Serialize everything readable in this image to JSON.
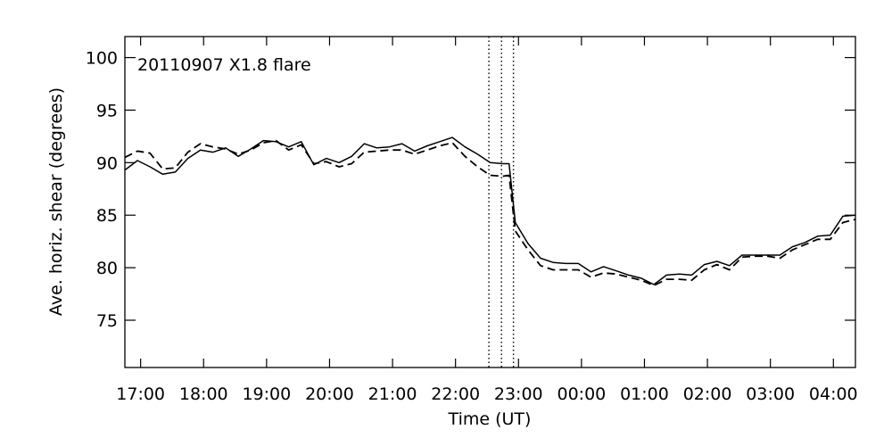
{
  "chart_data": {
    "type": "line",
    "title": "20110907 X1.8 flare",
    "xlabel": "Time (UT)",
    "ylabel": "Ave. horiz. shear (degrees)",
    "x_unit": "hours (UT, continuous past midnight)",
    "xlim": [
      16.75,
      28.35
    ],
    "ylim": [
      70.5,
      102
    ],
    "xticks": [
      {
        "value": 17,
        "label": "17:00"
      },
      {
        "value": 18,
        "label": "18:00"
      },
      {
        "value": 19,
        "label": "19:00"
      },
      {
        "value": 20,
        "label": "20:00"
      },
      {
        "value": 21,
        "label": "21:00"
      },
      {
        "value": 22,
        "label": "22:00"
      },
      {
        "value": 23,
        "label": "23:00"
      },
      {
        "value": 24,
        "label": "00:00"
      },
      {
        "value": 25,
        "label": "01:00"
      },
      {
        "value": 26,
        "label": "02:00"
      },
      {
        "value": 27,
        "label": "03:00"
      },
      {
        "value": 28,
        "label": "04:00"
      }
    ],
    "yticks": [
      75,
      80,
      85,
      90,
      95,
      100
    ],
    "vlines": [
      22.53,
      22.73,
      22.92
    ],
    "series": [
      {
        "style": "solid",
        "x": [
          16.75,
          16.95,
          17.15,
          17.35,
          17.55,
          17.75,
          17.95,
          18.15,
          18.35,
          18.55,
          18.75,
          18.95,
          19.15,
          19.35,
          19.55,
          19.75,
          19.95,
          20.15,
          20.35,
          20.55,
          20.75,
          20.95,
          21.15,
          21.35,
          21.55,
          21.75,
          21.95,
          22.15,
          22.35,
          22.55,
          22.75,
          22.85,
          22.95,
          23.15,
          23.35,
          23.55,
          23.75,
          23.95,
          24.15,
          24.35,
          24.55,
          24.75,
          24.95,
          25.15,
          25.35,
          25.55,
          25.75,
          25.95,
          26.15,
          26.35,
          26.55,
          26.75,
          26.95,
          27.15,
          27.35,
          27.55,
          27.75,
          27.95,
          28.15,
          28.35
        ],
        "y": [
          89.3,
          90.2,
          89.6,
          88.9,
          89.1,
          90.4,
          91.2,
          91.0,
          91.4,
          90.6,
          91.3,
          92.1,
          92.0,
          91.5,
          92.0,
          89.8,
          90.4,
          90.0,
          90.6,
          91.8,
          91.4,
          91.5,
          91.8,
          91.1,
          91.6,
          92.0,
          92.4,
          91.5,
          90.8,
          90.0,
          89.9,
          89.9,
          84.3,
          82.3,
          80.9,
          80.5,
          80.4,
          80.4,
          79.6,
          80.1,
          79.7,
          79.3,
          79.0,
          78.4,
          79.3,
          79.4,
          79.3,
          80.3,
          80.6,
          80.2,
          81.2,
          81.2,
          81.2,
          81.2,
          82.0,
          82.4,
          83.0,
          83.1,
          84.9,
          85.0
        ]
      },
      {
        "style": "dashed",
        "x": [
          16.75,
          16.95,
          17.15,
          17.35,
          17.55,
          17.75,
          17.95,
          18.15,
          18.35,
          18.55,
          18.75,
          18.95,
          19.15,
          19.35,
          19.55,
          19.75,
          19.95,
          20.15,
          20.35,
          20.55,
          20.75,
          20.95,
          21.15,
          21.35,
          21.55,
          21.75,
          21.95,
          22.15,
          22.35,
          22.55,
          22.75,
          22.85,
          22.95,
          23.15,
          23.35,
          23.55,
          23.75,
          23.95,
          24.15,
          24.35,
          24.55,
          24.75,
          24.95,
          25.15,
          25.35,
          25.55,
          25.75,
          25.95,
          26.15,
          26.35,
          26.55,
          26.75,
          26.95,
          27.15,
          27.35,
          27.55,
          27.75,
          27.95,
          28.15,
          28.35
        ],
        "y": [
          90.5,
          91.1,
          90.9,
          89.4,
          89.5,
          91.0,
          91.8,
          91.5,
          91.3,
          90.8,
          91.2,
          91.9,
          92.1,
          91.2,
          91.7,
          89.9,
          90.1,
          89.6,
          89.9,
          91.0,
          91.1,
          91.2,
          91.2,
          90.8,
          91.2,
          91.6,
          91.9,
          90.6,
          89.6,
          88.8,
          88.7,
          88.8,
          83.5,
          81.7,
          80.2,
          79.8,
          79.8,
          79.8,
          79.1,
          79.5,
          79.4,
          79.1,
          78.8,
          78.3,
          78.9,
          78.9,
          78.8,
          79.8,
          80.3,
          79.8,
          81.0,
          81.1,
          81.1,
          80.9,
          81.7,
          82.2,
          82.7,
          82.7,
          84.3,
          84.6
        ]
      }
    ],
    "colors": {
      "line": "#000000",
      "background": "#ffffff"
    }
  }
}
